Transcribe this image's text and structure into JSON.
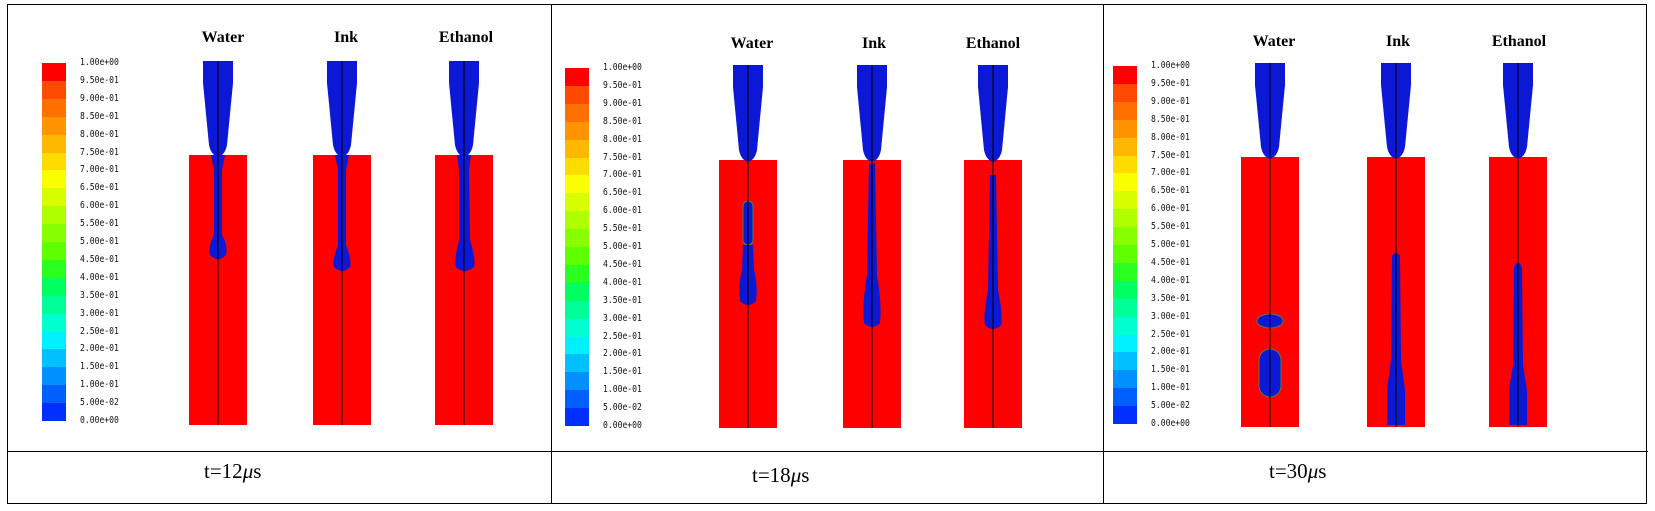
{
  "legend": {
    "labels": [
      "1.00e+00",
      "9.50e-01",
      "9.00e-01",
      "8.50e-01",
      "8.00e-01",
      "7.50e-01",
      "7.00e-01",
      "6.50e-01",
      "6.00e-01",
      "5.50e-01",
      "5.00e-01",
      "4.50e-01",
      "4.00e-01",
      "3.50e-01",
      "3.00e-01",
      "2.50e-01",
      "2.00e-01",
      "1.50e-01",
      "1.00e-01",
      "5.00e-02",
      "0.00e+00"
    ],
    "colors": [
      "#ff0000",
      "#ff4a00",
      "#ff7000",
      "#ff9400",
      "#ffb800",
      "#ffdc00",
      "#fcff00",
      "#d8ff00",
      "#b0ff00",
      "#88ff00",
      "#60ff00",
      "#2aff20",
      "#00ff60",
      "#00ff98",
      "#00ffd0",
      "#00f0ff",
      "#00c0ff",
      "#0090ff",
      "#0060ff",
      "#0030ff",
      "#0000ff"
    ]
  },
  "columns": [
    "Water",
    "Ink",
    "Ethanol"
  ],
  "panels": [
    {
      "time_prefix": "t=12",
      "time_mu": "μ",
      "time_unit": "s"
    },
    {
      "time_prefix": "t=18",
      "time_mu": "μ",
      "time_unit": "s"
    },
    {
      "time_prefix": "t=30",
      "time_mu": "μ",
      "time_unit": "s"
    }
  ],
  "colors": {
    "liquid": "#0b18d6",
    "gas": "#ff0000",
    "axis_line": "#000000"
  }
}
